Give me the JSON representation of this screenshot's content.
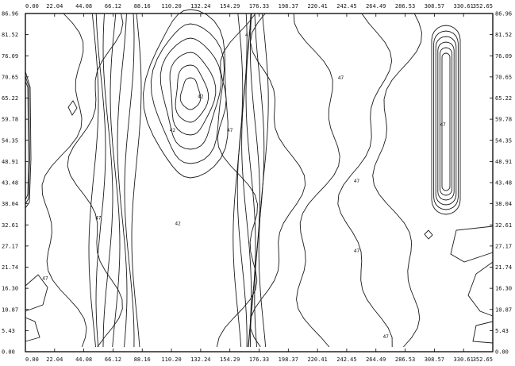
{
  "chart_data": {
    "type": "contour",
    "title": "",
    "xlabel": "",
    "ylabel": "",
    "xlim": [
      0.0,
      352.65
    ],
    "ylim": [
      0.0,
      86.96
    ],
    "x_ticks": [
      "0.00",
      "22.04",
      "44.08",
      "66.12",
      "88.16",
      "110.20",
      "132.24",
      "154.29",
      "176.33",
      "198.37",
      "220.41",
      "242.45",
      "264.49",
      "286.53",
      "308.57",
      "330.61",
      "352.65"
    ],
    "y_ticks": [
      "0.00",
      "5.43",
      "10.87",
      "16.30",
      "21.74",
      "27.17",
      "32.61",
      "38.04",
      "43.48",
      "48.91",
      "54.35",
      "59.78",
      "65.22",
      "70.65",
      "76.09",
      "81.52",
      "86.96"
    ],
    "grid": false,
    "contour_labels": [
      {
        "text": "42",
        "x": 132.24,
        "y": 65.22
      },
      {
        "text": "42",
        "x": 111.0,
        "y": 56.5
      },
      {
        "text": "47",
        "x": 154.3,
        "y": 56.5
      },
      {
        "text": "42",
        "x": 115.0,
        "y": 32.6
      },
      {
        "text": "47",
        "x": 55.0,
        "y": 34.0
      },
      {
        "text": "47",
        "x": 15.0,
        "y": 18.5
      },
      {
        "text": "47",
        "x": 250.0,
        "y": 43.5
      },
      {
        "text": "47",
        "x": 250.0,
        "y": 25.5
      },
      {
        "text": "47",
        "x": 238.0,
        "y": 70.0
      },
      {
        "text": "47",
        "x": 272.0,
        "y": 3.5
      },
      {
        "text": "47",
        "x": 315.0,
        "y": 58.0
      },
      {
        "text": "47",
        "x": 168.0,
        "y": 81.0
      }
    ],
    "features": [
      {
        "kind": "peak",
        "x": 132.24,
        "y": 65.22,
        "level": 42
      },
      {
        "kind": "closed-contours",
        "x": 330.61,
        "y": 59.78
      },
      {
        "kind": "closed-contours",
        "x": 2.0,
        "y": 59.78
      }
    ]
  }
}
